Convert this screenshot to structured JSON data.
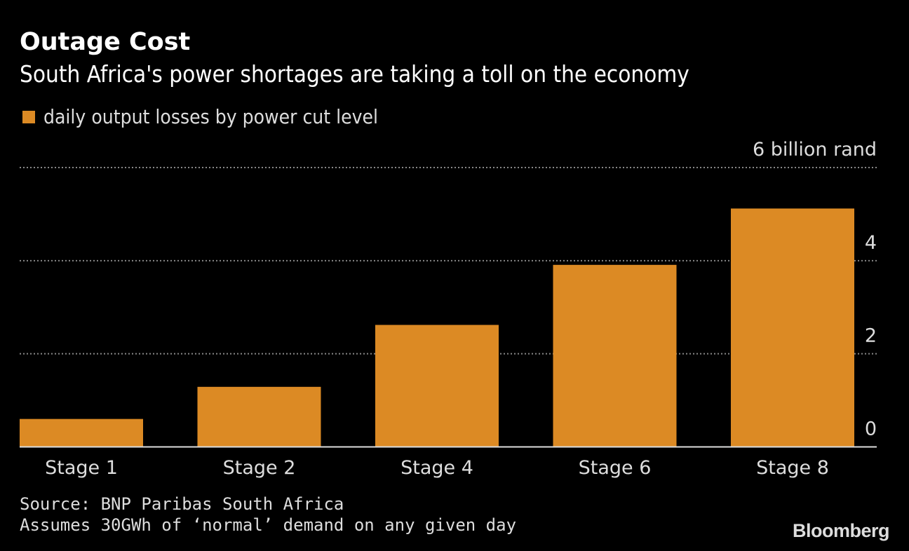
{
  "chart_data": {
    "type": "bar",
    "title": "Outage Cost",
    "subtitle": "South Africa's power shortages are taking a toll on the economy",
    "legend": [
      {
        "name": "daily output losses by power cut level",
        "color": "#dc8a24"
      }
    ],
    "legend_placement": "top-left",
    "categories": [
      "Stage 1",
      "Stage 2",
      "Stage 4",
      "Stage 6",
      "Stage 8"
    ],
    "series": [
      {
        "name": "daily output losses by power cut level",
        "values": [
          0.6,
          1.29,
          2.62,
          3.91,
          5.12
        ]
      }
    ],
    "xlabel": "",
    "ylabel": "billion rand",
    "ylim": [
      0,
      6
    ],
    "yticks": [
      0,
      2,
      4,
      6
    ],
    "ytick_labels": [
      "0",
      "2",
      "4",
      "6 billion rand"
    ],
    "y_axis_side": "right",
    "grid": true
  },
  "footer": {
    "source": "Source: BNP Paribas South Africa",
    "note": "Assumes 30GWh of ‘normal’ demand on any given day",
    "logo": "Bloomberg"
  }
}
